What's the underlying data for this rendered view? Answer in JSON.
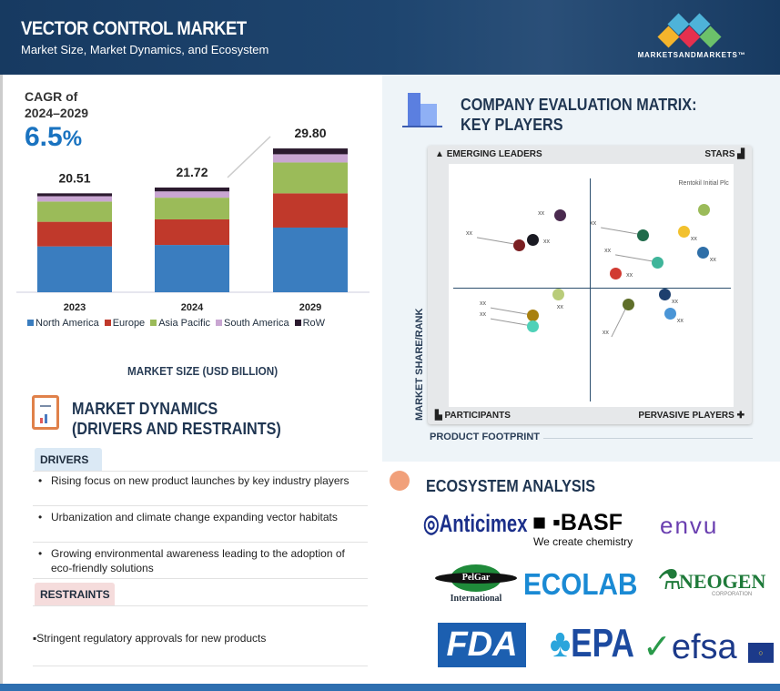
{
  "header": {
    "title": "VECTOR CONTROL MARKET",
    "subtitle": "Market Size, Market Dynamics, and Ecosystem",
    "brand": "MARKETSANDMARKETS™"
  },
  "cagr": {
    "label_line1": "CAGR of",
    "label_line2": "2024–2029",
    "value": "6.5",
    "unit": "%"
  },
  "chart_data": {
    "type": "bar",
    "stacked": true,
    "title": "MARKET SIZE (USD BILLION)",
    "categories": [
      "2023",
      "2024",
      "2029"
    ],
    "totals": [
      "20.51",
      "21.72",
      "29.80"
    ],
    "series": [
      {
        "name": "North America",
        "color": "#3a7dbf",
        "values": [
          9.5,
          9.8,
          13.4
        ]
      },
      {
        "name": "Europe",
        "color": "#c0392b",
        "values": [
          5.1,
          5.3,
          7.1
        ]
      },
      {
        "name": "Asia Pacific",
        "color": "#9bbb59",
        "values": [
          4.2,
          4.5,
          6.4
        ]
      },
      {
        "name": "South America",
        "color": "#c9a6d2",
        "values": [
          1.1,
          1.3,
          1.7
        ]
      },
      {
        "name": "RoW",
        "color": "#2b1a2e",
        "values": [
          0.6,
          0.8,
          1.2
        ]
      }
    ]
  },
  "dynamics": {
    "title_line1": "MARKET DYNAMICS",
    "title_line2": "(DRIVERS AND RESTRAINTS)",
    "drivers_label": "DRIVERS",
    "drivers": [
      "Rising focus on new product launches by key industry players",
      "Urbanization and climate change expanding vector habitats",
      "Growing environmental awareness leading to the adoption of eco-friendly solutions"
    ],
    "restraints_label": "RESTRAINTS",
    "restraints": [
      "▪Stringent regulatory approvals for new products"
    ]
  },
  "matrix": {
    "title_line1": "COMPANY EVALUATION MATRIX:",
    "title_line2": "KEY PLAYERS",
    "quadrants": {
      "tl": "EMERGING LEADERS",
      "tr": "STARS",
      "bl": "PARTICIPANTS",
      "br": "PERVASIVE PLAYERS"
    },
    "y_axis": "MARKET SHARE/RANK",
    "x_axis": "PRODUCT FOOTPRINT",
    "points": [
      {
        "label": "xx",
        "x": 39,
        "y": 79,
        "color": "#4a2a4f",
        "lp": "left"
      },
      {
        "label": "xx",
        "x": 29.4,
        "y": 68.9,
        "color": "#1a1a22",
        "lp": "right"
      },
      {
        "label": "xx",
        "x": 24.6,
        "y": 66.7,
        "color": "#7a1f22",
        "lp": "farleft"
      },
      {
        "label": "Rentokil Initial Plc",
        "x": 89.5,
        "y": 81.3,
        "color": "#9bbb59",
        "lp": "above"
      },
      {
        "label": "xx",
        "x": 68.1,
        "y": 70.8,
        "color": "#1f6b4a",
        "lp": "farleft"
      },
      {
        "label": "xx",
        "x": 82.4,
        "y": 72.3,
        "color": "#f2c12e",
        "lp": "belowright"
      },
      {
        "label": "xx",
        "x": 89.1,
        "y": 63.7,
        "color": "#2f6fa8",
        "lp": "belowright"
      },
      {
        "label": "xx",
        "x": 73.2,
        "y": 59.6,
        "color": "#3fb59a",
        "lp": "farleft"
      },
      {
        "label": "xx",
        "x": 58.5,
        "y": 55.1,
        "color": "#d13b32",
        "lp": "right"
      },
      {
        "label": "xx",
        "x": 38.3,
        "y": 46.4,
        "color": "#b9cc7a",
        "lp": "below"
      },
      {
        "label": "xx",
        "x": 75.7,
        "y": 46.4,
        "color": "#1d3f6e",
        "lp": "belowright"
      },
      {
        "label": "xx",
        "x": 62.9,
        "y": 42.3,
        "color": "#5f6f2a",
        "lp": "farbelowleft"
      },
      {
        "label": "xx",
        "x": 77.6,
        "y": 38.6,
        "color": "#4a95d6",
        "lp": "belowright"
      },
      {
        "label": "xx",
        "x": 29.4,
        "y": 37.8,
        "color": "#a8800f",
        "lp": "farleft"
      },
      {
        "label": "xx",
        "x": 29.4,
        "y": 33.3,
        "color": "#4fd1b8",
        "lp": "farleft"
      }
    ]
  },
  "ecosystem": {
    "title": "ECOSYSTEM ANALYSIS",
    "logos": [
      "Anticimex",
      "BASF",
      "We create chemistry",
      "envu",
      "PelGar",
      "International",
      "ECOLAB",
      "NEOGEN",
      "CORPORATION",
      "FDA",
      "EPA",
      "efsa"
    ]
  }
}
